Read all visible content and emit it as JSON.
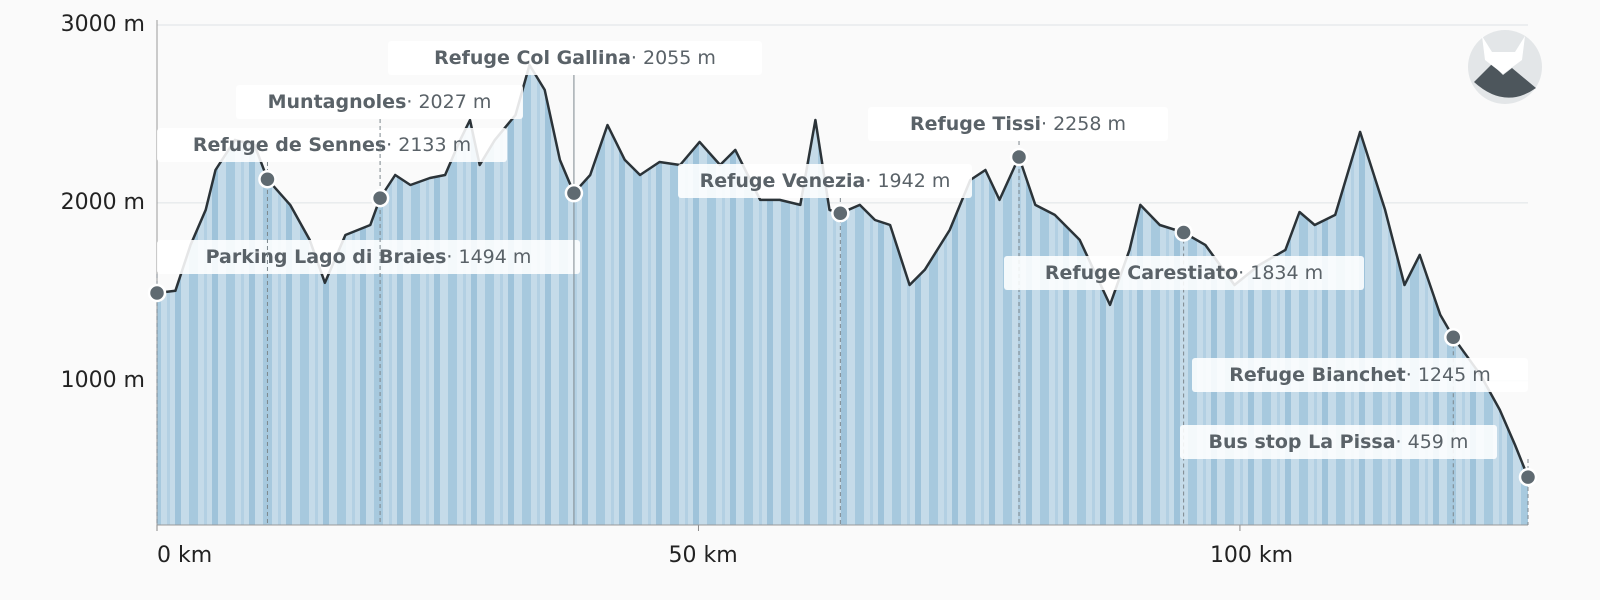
{
  "chart_data": {
    "type": "area",
    "x": [
      0,
      1.7,
      3.1,
      4.5,
      5.4,
      7.2,
      9.0,
      10.2,
      12.3,
      14.1,
      15.5,
      17.4,
      19.7,
      20.6,
      22.0,
      23.4,
      25.2,
      26.6,
      28.0,
      28.9,
      29.8,
      31.2,
      33.1,
      34.4,
      35.8,
      37.2,
      38.5,
      40.0,
      41.6,
      43.2,
      44.6,
      46.4,
      48.3,
      50.1,
      52.0,
      53.4,
      55.7,
      57.5,
      59.4,
      60.8,
      62.1,
      63.1,
      64.9,
      66.3,
      67.7,
      69.5,
      70.9,
      73.2,
      75.1,
      76.5,
      77.8,
      79.6,
      81.1,
      82.9,
      85.2,
      88.0,
      89.8,
      90.8,
      92.6,
      94.8,
      96.8,
      99.5,
      101.8,
      104.2,
      105.5,
      106.9,
      108.8,
      111.1,
      113.4,
      115.2,
      116.6,
      118.5,
      119.7,
      122.2,
      124.0,
      125.4,
      126.6
    ],
    "values": [
      1494,
      1506,
      1764,
      1961,
      2185,
      2354,
      2326,
      2133,
      1989,
      1792,
      1551,
      1820,
      1876,
      2027,
      2157,
      2101,
      2140,
      2157,
      2354,
      2466,
      2213,
      2354,
      2494,
      2775,
      2635,
      2242,
      2055,
      2157,
      2438,
      2242,
      2157,
      2230,
      2213,
      2343,
      2213,
      2298,
      2017,
      2017,
      1989,
      2466,
      1961,
      1942,
      1989,
      1904,
      1876,
      1539,
      1624,
      1848,
      2129,
      2185,
      2017,
      2258,
      1989,
      1933,
      1792,
      1427,
      1736,
      1989,
      1876,
      1834,
      1764,
      1539,
      1652,
      1736,
      1949,
      1876,
      1933,
      2399,
      1961,
      1539,
      1708,
      1371,
      1245,
      1034,
      837,
      640,
      459
    ],
    "color": "#2b3338",
    "fill": "#c5dbe9",
    "xlim": [
      0,
      126.6
    ],
    "ylim": [
      190,
      3000
    ],
    "xticks": [
      {
        "value": 0,
        "label": "0 km"
      },
      {
        "value": 50,
        "label": "50 km"
      },
      {
        "value": 100,
        "label": "100 km"
      }
    ],
    "yticks": [
      {
        "value": 1000,
        "label": "1000 m"
      },
      {
        "value": 2000,
        "label": "2000 m"
      },
      {
        "value": 3000,
        "label": "3000 m"
      }
    ],
    "grid": true,
    "annotations": [
      {
        "label": "Parking Lago di Braies",
        "x": 0,
        "y": 1494,
        "value_label": "· 1494 m"
      },
      {
        "label": "Refuge de Sennes",
        "x": 10.2,
        "y": 2133,
        "value_label": "· 2133 m"
      },
      {
        "label": "Muntagnoles",
        "x": 20.6,
        "y": 2027,
        "value_label": "· 2027 m"
      },
      {
        "label": "Refuge Col Gallina",
        "x": 38.5,
        "y": 2055,
        "value_label": "· 2055 m"
      },
      {
        "label": "Refuge Venezia",
        "x": 63.1,
        "y": 1942,
        "value_label": "· 1942 m"
      },
      {
        "label": "Refuge Tissi",
        "x": 79.6,
        "y": 2258,
        "value_label": "· 2258 m"
      },
      {
        "label": "Refuge Carestiato",
        "x": 94.8,
        "y": 1834,
        "value_label": "· 1834 m"
      },
      {
        "label": "Refuge Bianchet",
        "x": 119.7,
        "y": 1245,
        "value_label": "· 1245 m"
      },
      {
        "label": "Bus stop La Pissa",
        "x": 126.6,
        "y": 459,
        "value_label": "· 459 m"
      }
    ]
  }
}
